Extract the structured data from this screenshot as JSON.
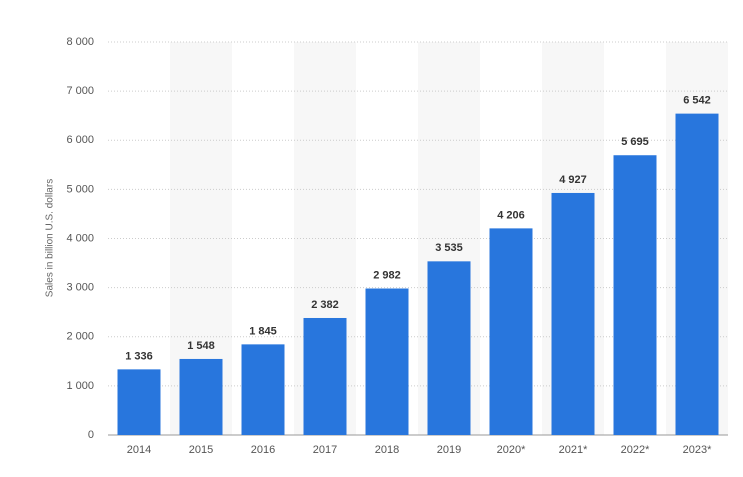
{
  "chart_data": {
    "type": "bar",
    "y_label": "Sales in billion U.S. dollars",
    "categories": [
      "2014",
      "2015",
      "2016",
      "2017",
      "2018",
      "2019",
      "2020*",
      "2021*",
      "2022*",
      "2023*"
    ],
    "values": [
      1336,
      1548,
      1845,
      2382,
      2982,
      3535,
      4206,
      4927,
      5695,
      6542
    ],
    "value_labels": [
      "1 336",
      "1 548",
      "1 845",
      "2 382",
      "2 982",
      "3 535",
      "4 206",
      "4 927",
      "5 695",
      "6 542"
    ],
    "color": "#2876dd",
    "ylim": [
      0,
      8000
    ],
    "yticks": [
      0,
      {
        "value": 1000,
        "label": "1 000"
      },
      {
        "value": 2000,
        "label": "2 000"
      },
      {
        "value": 3000,
        "label": "3 000"
      },
      {
        "value": 4000,
        "label": "4 000"
      },
      {
        "value": 5000,
        "label": "5 000"
      },
      {
        "value": 6000,
        "label": "6 000"
      },
      {
        "value": 7000,
        "label": "7 000"
      },
      {
        "value": 8000,
        "label": "8 000"
      }
    ],
    "grid": true
  }
}
